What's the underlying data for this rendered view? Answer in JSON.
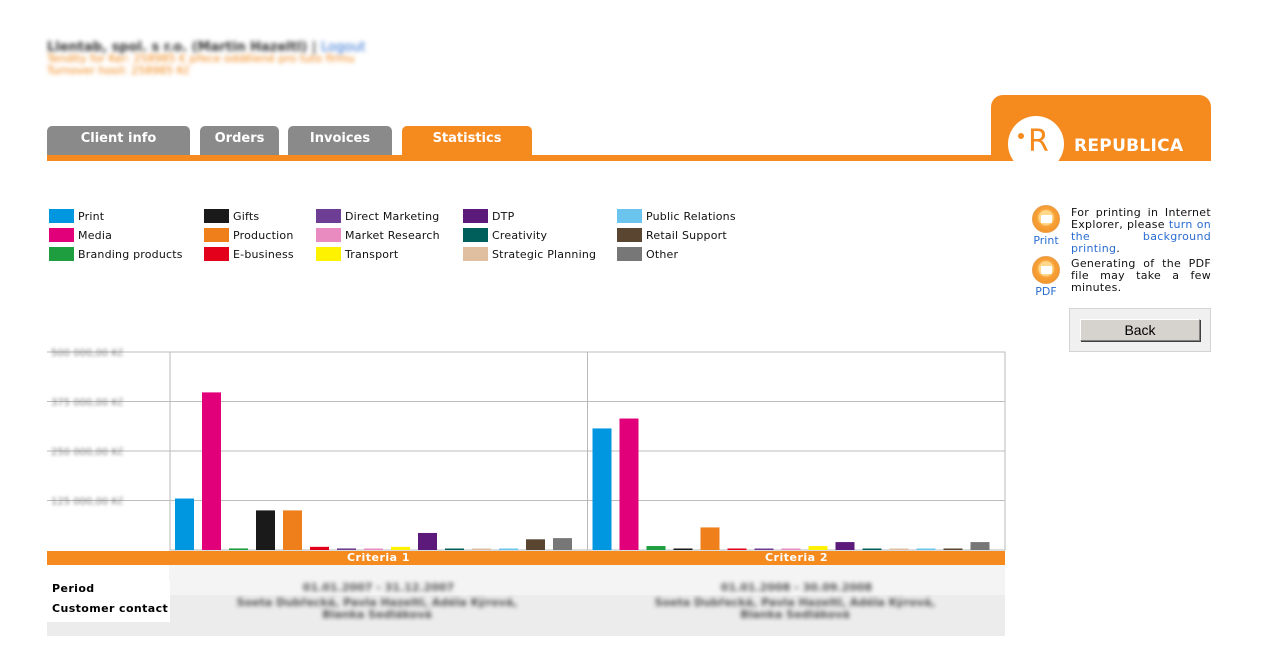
{
  "header": {
    "user_line": "Llentab, spol. s r.o. (Martin Hazeltl) |",
    "logout_label": "Logout",
    "turnover_line1": "Tendity for Ker: 258985 € přece oddělené pro tuto firmu",
    "turnover_line2": "Turnover hosil: 258985 Kč"
  },
  "tabs": [
    {
      "label": "Client info",
      "active": false
    },
    {
      "label": "Orders",
      "active": false
    },
    {
      "label": "Invoices",
      "active": false
    },
    {
      "label": "Statistics",
      "active": true
    }
  ],
  "logo": {
    "text": "REPUBLICA",
    "mark": "R"
  },
  "legend": [
    {
      "label": "Print",
      "color": "#0097e0"
    },
    {
      "label": "Media",
      "color": "#e2007a"
    },
    {
      "label": "Branding products",
      "color": "#1e9e3e"
    },
    {
      "label": "Gifts",
      "color": "#1a1a1a"
    },
    {
      "label": "Production",
      "color": "#ef7f1a"
    },
    {
      "label": "E-business",
      "color": "#e2001a"
    },
    {
      "label": "Direct Marketing",
      "color": "#6e3d94"
    },
    {
      "label": "Market Research",
      "color": "#e98ac0"
    },
    {
      "label": "Transport",
      "color": "#fff200"
    },
    {
      "label": "DTP",
      "color": "#5c1a7a"
    },
    {
      "label": "Creativity",
      "color": "#005f5a"
    },
    {
      "label": "Strategic Planning",
      "color": "#dfbfa0"
    },
    {
      "label": "Public Relations",
      "color": "#6ac4ee"
    },
    {
      "label": "Retail Support",
      "color": "#5a4630"
    },
    {
      "label": "Other",
      "color": "#777777"
    }
  ],
  "side": {
    "print_caption": "Print",
    "print_text_1": "For printing in Internet Explorer, please",
    "print_link": "turn on the background printing",
    "print_text_2": ".",
    "pdf_caption": "PDF",
    "pdf_text": "Generating of the PDF file may take a few minutes.",
    "back_label": "Back"
  },
  "chart_data": {
    "type": "bar",
    "categories": [
      "Criteria 1",
      "Criteria 2"
    ],
    "y_tick_labels": [
      "500 000,00 Kč",
      "375 000,00 Kč",
      "250 000,00 Kč",
      "125 000,00 Kč"
    ],
    "ylim": [
      0,
      500000
    ],
    "grid": true,
    "series": [
      {
        "name": "Print",
        "color": "#0097e0",
        "values": [
          130000,
          307000
        ]
      },
      {
        "name": "Media",
        "color": "#e2007a",
        "values": [
          398000,
          332000
        ]
      },
      {
        "name": "Branding products",
        "color": "#1e9e3e",
        "values": [
          4000,
          10000
        ]
      },
      {
        "name": "Gifts",
        "color": "#1a1a1a",
        "values": [
          100000,
          3000
        ]
      },
      {
        "name": "Production",
        "color": "#ef7f1a",
        "values": [
          100000,
          57000
        ]
      },
      {
        "name": "E-business",
        "color": "#e2001a",
        "values": [
          8000,
          3000
        ]
      },
      {
        "name": "Direct Marketing",
        "color": "#6e3d94",
        "values": [
          4000,
          3000
        ]
      },
      {
        "name": "Market Research",
        "color": "#e98ac0",
        "values": [
          3000,
          3000
        ]
      },
      {
        "name": "Transport",
        "color": "#fff200",
        "values": [
          8000,
          10000
        ]
      },
      {
        "name": "DTP",
        "color": "#5c1a7a",
        "values": [
          43000,
          20000
        ]
      },
      {
        "name": "Creativity",
        "color": "#005f5a",
        "values": [
          3000,
          3000
        ]
      },
      {
        "name": "Strategic Planning",
        "color": "#dfbfa0",
        "values": [
          3000,
          3000
        ]
      },
      {
        "name": "Public Relations",
        "color": "#6ac4ee",
        "values": [
          3000,
          3000
        ]
      },
      {
        "name": "Retail Support",
        "color": "#5a4630",
        "values": [
          27000,
          3000
        ]
      },
      {
        "name": "Other",
        "color": "#777777",
        "values": [
          30000,
          20000
        ]
      }
    ]
  },
  "info": {
    "period_label": "Period",
    "contact_label": "Customer contact",
    "criteria1_period": "01.01.2007 - 31.12.2007",
    "criteria2_period": "01.01.2008 - 30.09.2008",
    "criteria1_contact": "Soeta Dubřecká, Pavla Hazeltl, Adéla Kýrová, Blanka Sedláková",
    "criteria2_contact": "Soeta Dubřecká, Pavla Hazeltl, Adéla Kýrová, Blanka Sedláková"
  }
}
